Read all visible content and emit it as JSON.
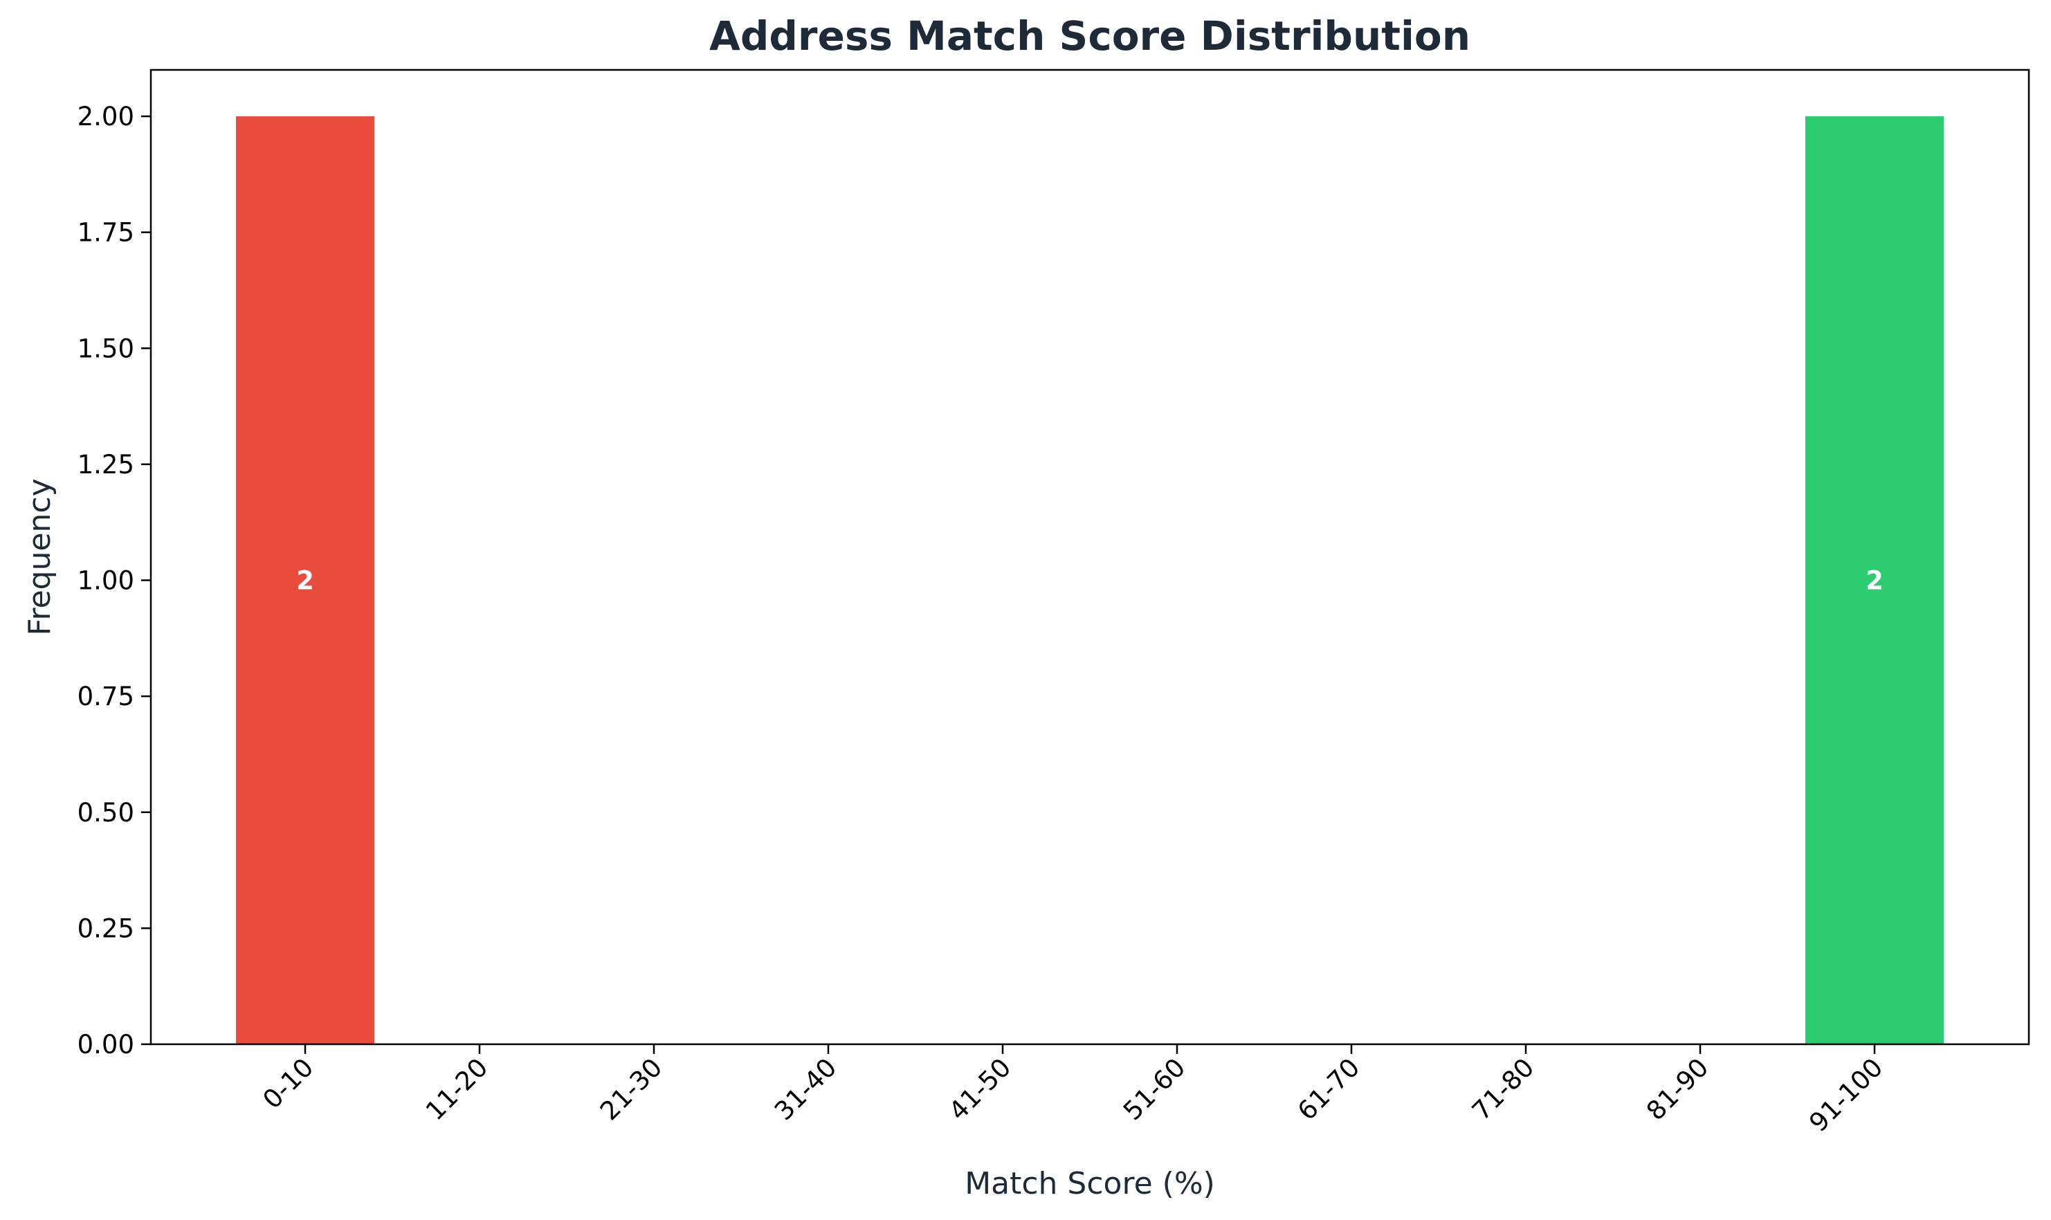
{
  "chart_data": {
    "type": "bar",
    "title": "Address Match Score Distribution",
    "xlabel": "Match Score (%)",
    "ylabel": "Frequency",
    "categories": [
      "0-10",
      "11-20",
      "21-30",
      "31-40",
      "41-50",
      "51-60",
      "61-70",
      "71-80",
      "81-90",
      "91-100"
    ],
    "values": [
      2,
      0,
      0,
      0,
      0,
      0,
      0,
      0,
      0,
      2
    ],
    "bar_colors": [
      "#e74c3c",
      "#e74c3c",
      "#e74c3c",
      "#e67e22",
      "#e67e22",
      "#f1c40f",
      "#f1c40f",
      "#2ecc71",
      "#2ecc71",
      "#2ecc71"
    ],
    "bar_labels": [
      "2",
      "",
      "",
      "",
      "",
      "",
      "",
      "",
      "",
      "2"
    ],
    "ylim": [
      0,
      2.1
    ],
    "yticks": [
      "0.00",
      "0.25",
      "0.50",
      "0.75",
      "1.00",
      "1.25",
      "1.50",
      "1.75",
      "2.00"
    ],
    "ytick_values": [
      0,
      0.25,
      0.5,
      0.75,
      1.0,
      1.25,
      1.5,
      1.75,
      2.0
    ],
    "grid": false,
    "legend": "none"
  }
}
